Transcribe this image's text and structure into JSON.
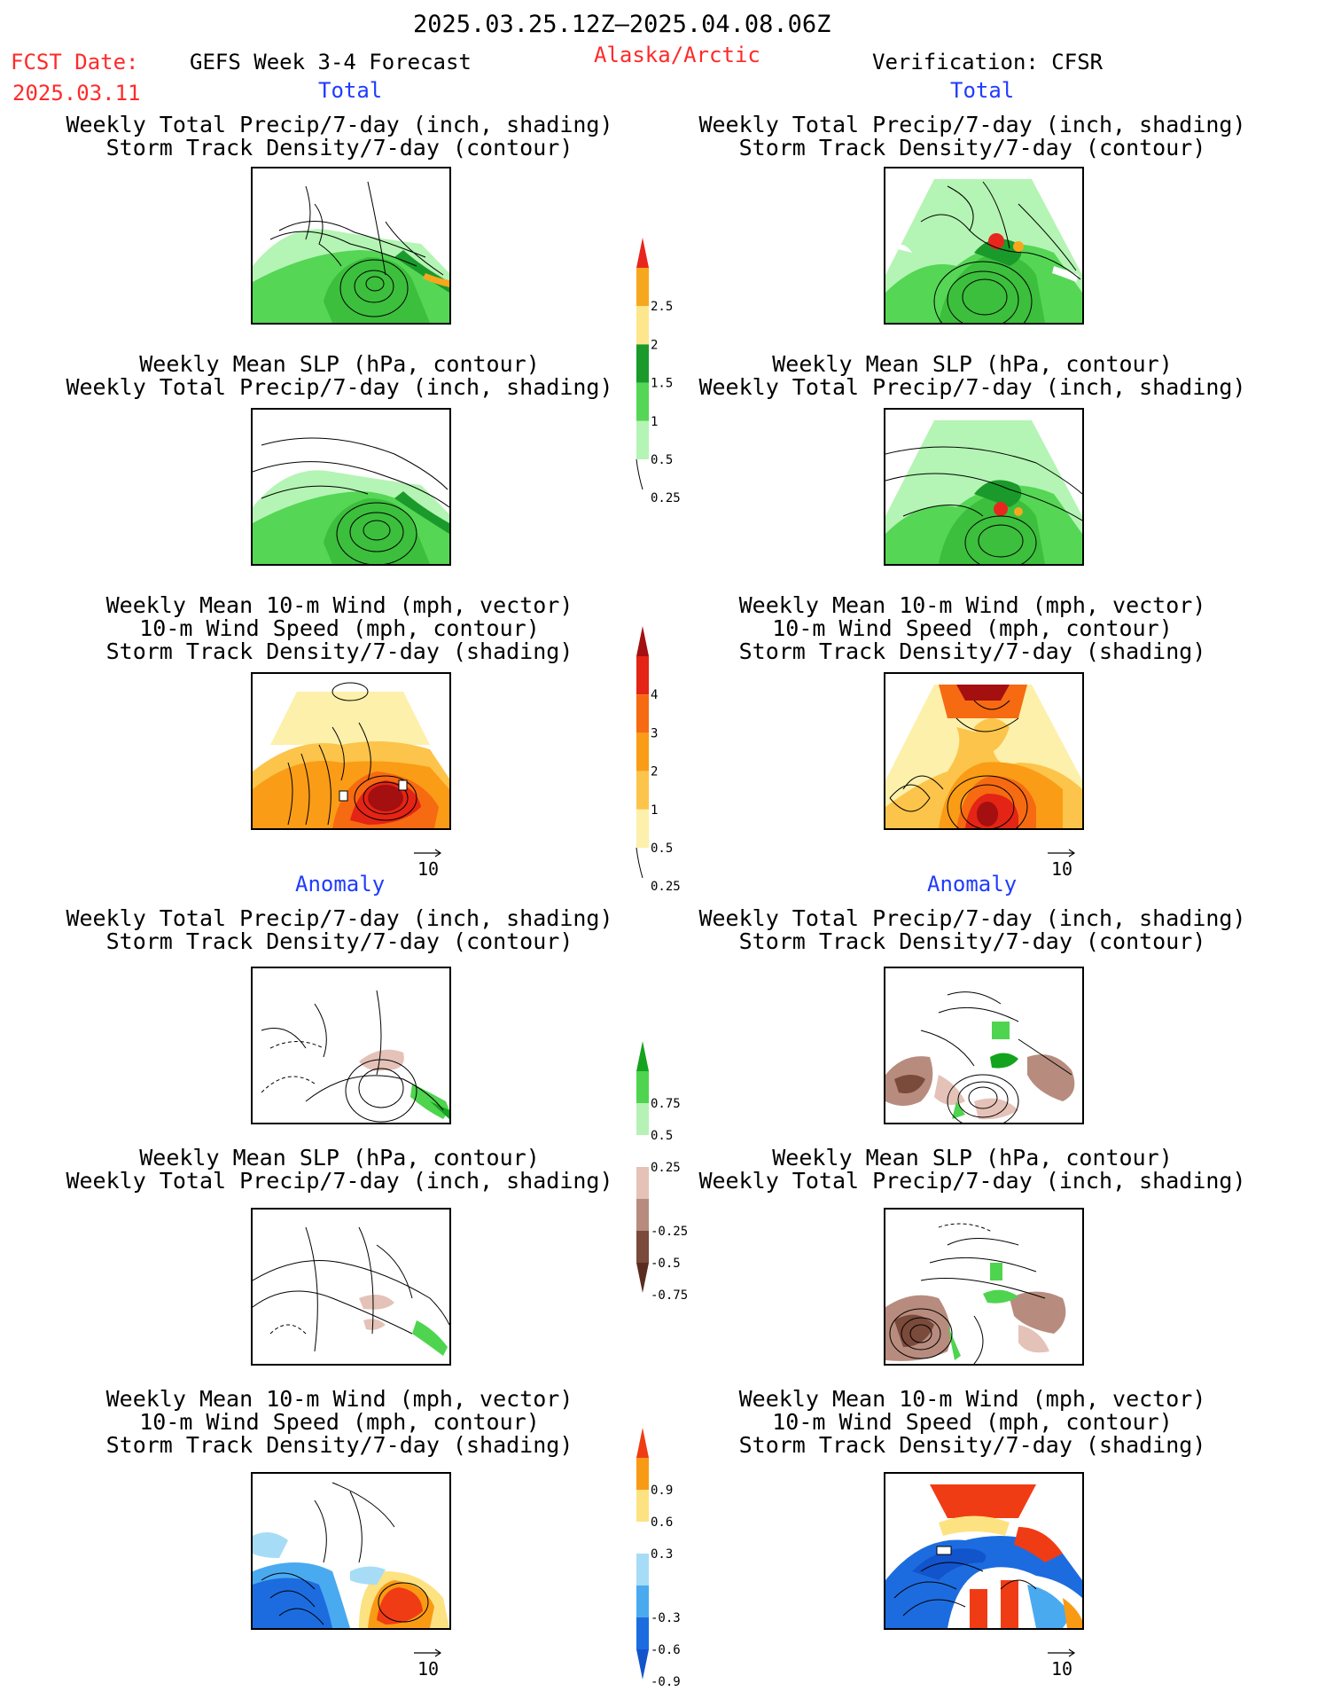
{
  "header": {
    "date_range": "2025.03.25.12Z—2025.04.08.06Z",
    "fcst_label": "FCST Date:",
    "fcst_date": "2025.03.11",
    "product": "GEFS Week 3-4 Forecast",
    "region": "Alaska/Arctic",
    "verification": "Verification: CFSR"
  },
  "sections": {
    "total": "Total",
    "anomaly": "Anomaly"
  },
  "titles": {
    "p1_l1": "Weekly Total Precip/7-day (inch, shading)",
    "p1_l2": "Storm Track Density/7-day (contour)",
    "p2_l1": "Weekly Mean SLP (hPa, contour)",
    "p2_l2": "Weekly Total Precip/7-day (inch, shading)",
    "p3_l1": "Weekly Mean 10-m Wind (mph, vector)",
    "p3_l2": "10-m Wind Speed (mph, contour)",
    "p3_l3": "Storm Track Density/7-day (shading)"
  },
  "vector_ref": "10",
  "colorbars": {
    "precip_total": {
      "labels": [
        "2.5",
        "2",
        "1.5",
        "1",
        "0.5",
        "0.25"
      ],
      "colors": [
        "#e8261e",
        "#f7a71e",
        "#fde68c",
        "#1a9a2a",
        "#55d655",
        "#b4f4b4"
      ]
    },
    "storm_total": {
      "labels": [
        "4",
        "3",
        "2",
        "1",
        "0.5",
        "0.25"
      ],
      "colors": [
        "#a40f10",
        "#e42414",
        "#f66a12",
        "#fa9c16",
        "#fcc44a",
        "#fdf0aa"
      ]
    },
    "precip_anom": {
      "labels": [
        "0.75",
        "0.5",
        "0.25",
        "-0.25",
        "-0.5",
        "-0.75"
      ],
      "colors": [
        "#14a31e",
        "#4fd44f",
        "#b6f2b6",
        "#ffffff",
        "#e4c2b8",
        "#b78c7e",
        "#7a4a3a",
        "#5a2c20"
      ]
    },
    "storm_anom": {
      "labels": [
        "0.9",
        "0.6",
        "0.3",
        "-0.3",
        "-0.6",
        "-0.9"
      ],
      "colors": [
        "#f03c14",
        "#f99a14",
        "#fde282",
        "#ffffff",
        "#a6dcf6",
        "#4aaaf0",
        "#1c6ce0",
        "#1254cc"
      ]
    }
  }
}
